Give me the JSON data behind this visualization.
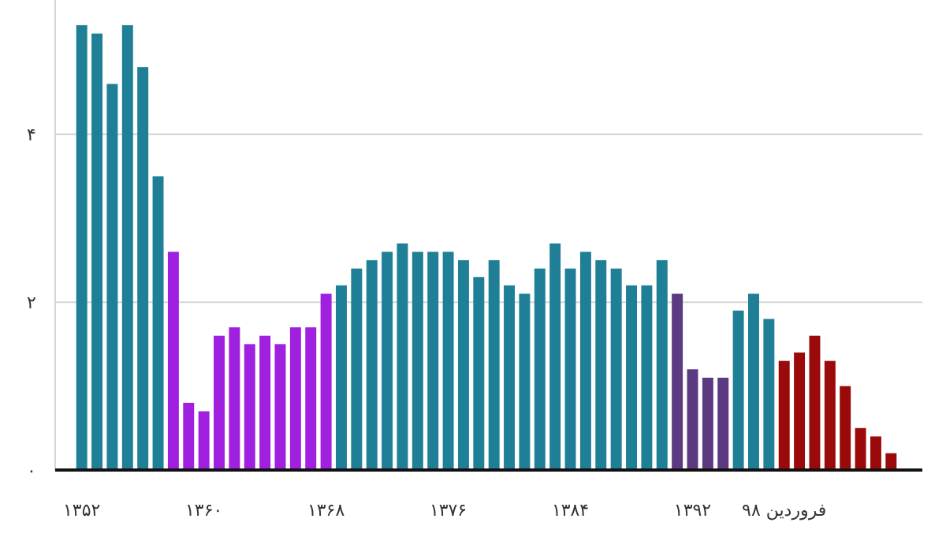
{
  "chart_data": {
    "type": "bar",
    "categories": [
      "۱۳۵۲",
      null,
      null,
      null,
      null,
      null,
      null,
      null,
      "۱۳۶۰",
      null,
      null,
      null,
      null,
      null,
      null,
      null,
      "۱۳۶۸",
      null,
      null,
      null,
      null,
      null,
      null,
      null,
      "۱۳۷۶",
      null,
      null,
      null,
      null,
      null,
      null,
      null,
      "۱۳۸۴",
      null,
      null,
      null,
      null,
      null,
      null,
      null,
      "۱۳۹۲",
      null,
      null,
      null,
      null,
      null,
      "فروردین ۹۸",
      null,
      null,
      null,
      null,
      null,
      null,
      null
    ],
    "values": [
      5.3,
      5.2,
      4.6,
      5.3,
      4.8,
      3.5,
      2.6,
      0.8,
      0.7,
      1.6,
      1.7,
      1.5,
      1.6,
      1.5,
      1.7,
      1.7,
      2.1,
      2.2,
      2.4,
      2.5,
      2.6,
      2.7,
      2.6,
      2.6,
      2.6,
      2.5,
      2.3,
      2.5,
      2.2,
      2.1,
      2.4,
      2.7,
      2.4,
      2.6,
      2.5,
      2.4,
      2.2,
      2.2,
      2.5,
      2.1,
      1.2,
      1.1,
      1.1,
      1.9,
      2.1,
      1.8,
      1.3,
      1.4,
      1.6,
      1.3,
      1.0,
      0.5,
      0.4,
      0.2
    ],
    "colors": [
      "#1f7f96",
      "#1f7f96",
      "#1f7f96",
      "#1f7f96",
      "#1f7f96",
      "#1f7f96",
      "#a020e0",
      "#a020e0",
      "#a020e0",
      "#a020e0",
      "#a020e0",
      "#a020e0",
      "#a020e0",
      "#a020e0",
      "#a020e0",
      "#a020e0",
      "#a020e0",
      "#1f7f96",
      "#1f7f96",
      "#1f7f96",
      "#1f7f96",
      "#1f7f96",
      "#1f7f96",
      "#1f7f96",
      "#1f7f96",
      "#1f7f96",
      "#1f7f96",
      "#1f7f96",
      "#1f7f96",
      "#1f7f96",
      "#1f7f96",
      "#1f7f96",
      "#1f7f96",
      "#1f7f96",
      "#1f7f96",
      "#1f7f96",
      "#1f7f96",
      "#1f7f96",
      "#1f7f96",
      "#5b3a82",
      "#5b3a82",
      "#5b3a82",
      "#5b3a82",
      "#1f7f96",
      "#1f7f96",
      "#1f7f96",
      "#9b0a0a",
      "#9b0a0a",
      "#9b0a0a",
      "#9b0a0a",
      "#9b0a0a",
      "#9b0a0a",
      "#9b0a0a",
      "#9b0a0a"
    ],
    "ylim": [
      0,
      5.6
    ],
    "yticks": [
      {
        "value": 0,
        "label": "۰"
      },
      {
        "value": 2,
        "label": "۲"
      },
      {
        "value": 4,
        "label": "۴"
      }
    ],
    "grid": "y"
  }
}
